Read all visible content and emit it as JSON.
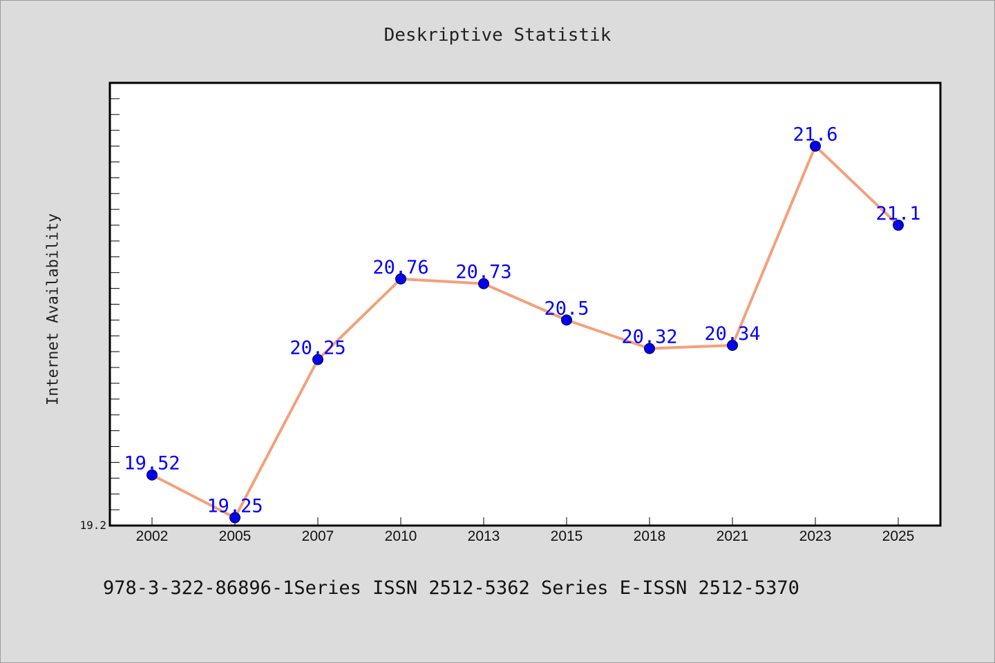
{
  "chart_data": {
    "type": "line",
    "title": "Deskriptive Statistik",
    "xlabel": "",
    "ylabel": "Internet Availability",
    "categories": [
      "2002",
      "2005",
      "2007",
      "2010",
      "2013",
      "2015",
      "2018",
      "2021",
      "2023",
      "2025"
    ],
    "series": [
      {
        "values": [
          19.52,
          19.25,
          20.25,
          20.76,
          20.73,
          20.5,
          20.32,
          20.34,
          21.6,
          21.1
        ]
      }
    ],
    "data_labels": [
      "19.52",
      "19.25",
      "20.25",
      "20.76",
      "20.73",
      "20.5",
      "20.32",
      "20.34",
      "21.6",
      "21.1"
    ],
    "ylim": [
      19.2,
      22.0
    ],
    "yticks_labeled": [
      "19.2"
    ],
    "grid": false,
    "line_color": "#f4a07c",
    "marker_color": "#0000ee",
    "label_color": "#0000ff"
  },
  "footer_note": "978-3-322-86896-1Series ISSN 2512-5362 Series E-ISSN 2512-5370"
}
